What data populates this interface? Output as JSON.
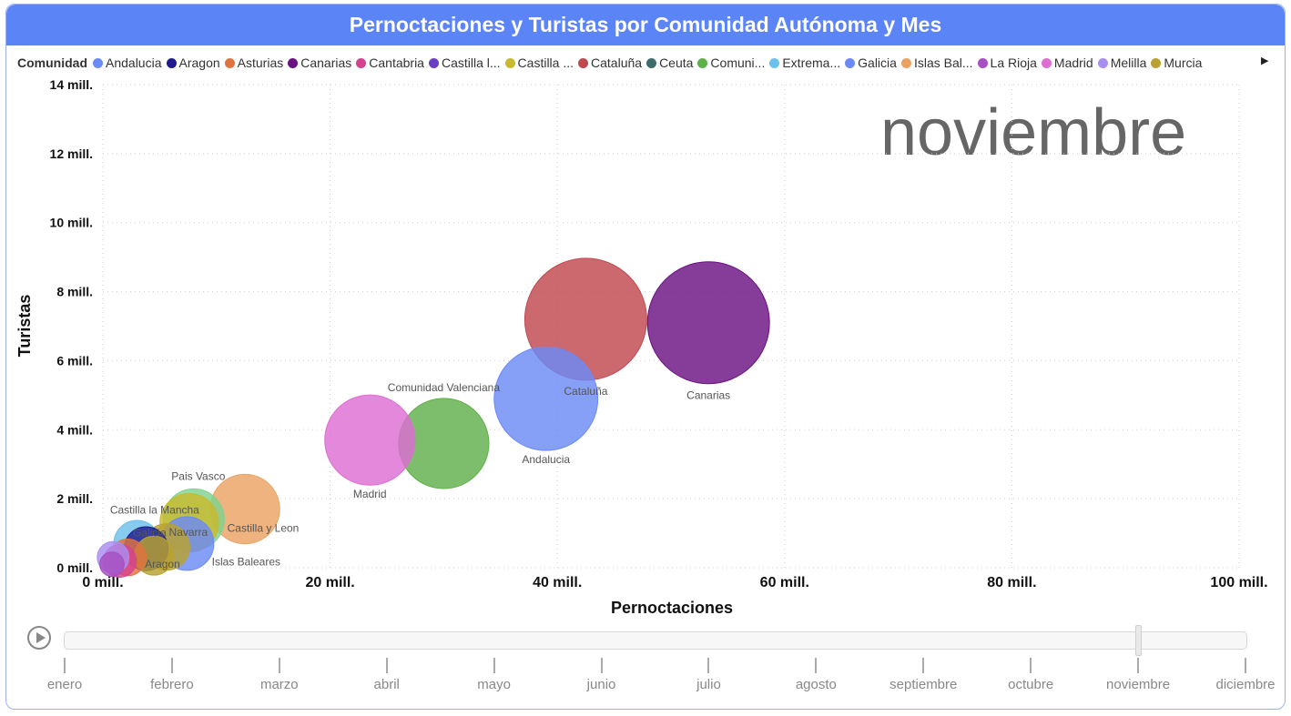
{
  "title": "Pernoctaciones y Turistas por Comunidad Autónoma y Mes",
  "legend": {
    "title": "Comunidad",
    "items": [
      {
        "label": "Andalucia",
        "color": "#6b8af5"
      },
      {
        "label": "Aragon",
        "color": "#1f1b8f"
      },
      {
        "label": "Asturias",
        "color": "#e0733f"
      },
      {
        "label": "Canarias",
        "color": "#6b1182"
      },
      {
        "label": "Cantabria",
        "color": "#d6428f"
      },
      {
        "label": "Castilla l...",
        "color": "#6a3fc4"
      },
      {
        "label": "Castilla ...",
        "color": "#c9b92e"
      },
      {
        "label": "Cataluña",
        "color": "#c0484f"
      },
      {
        "label": "Ceuta",
        "color": "#3e6b6b"
      },
      {
        "label": "Comuni...",
        "color": "#5fb04a"
      },
      {
        "label": "Extrema...",
        "color": "#6cc0ec"
      },
      {
        "label": "Galicia",
        "color": "#6b8af5"
      },
      {
        "label": "Islas Bal...",
        "color": "#eaa262"
      },
      {
        "label": "La Rioja",
        "color": "#a74fc2"
      },
      {
        "label": "Madrid",
        "color": "#dd6ed3"
      },
      {
        "label": "Melilla",
        "color": "#a98ef2"
      },
      {
        "label": "Murcia",
        "color": "#b9a230"
      }
    ]
  },
  "month_label": "noviembre",
  "timeline": {
    "months": [
      "enero",
      "febrero",
      "marzo",
      "abril",
      "mayo",
      "junio",
      "julio",
      "agosto",
      "septiembre",
      "octubre",
      "noviembre",
      "diciembre"
    ],
    "selected": "noviembre"
  },
  "chart_data": {
    "type": "scatter",
    "title": "Pernoctaciones y Turistas por Comunidad Autónoma y Mes",
    "xlabel": "Pernoctaciones",
    "ylabel": "Turistas",
    "xlim": [
      0,
      100
    ],
    "ylim": [
      0,
      14
    ],
    "x_unit": "mill.",
    "y_unit": "mill.",
    "xticks": [
      "0 mill.",
      "20 mill.",
      "40 mill.",
      "60 mill.",
      "80 mill.",
      "100 mill."
    ],
    "yticks": [
      "0 mill.",
      "2 mill.",
      "4 mill.",
      "6 mill.",
      "8 mill.",
      "10 mill.",
      "12 mill.",
      "14 mill."
    ],
    "grid": true,
    "legend_position": "top",
    "points": [
      {
        "name": "Canarias",
        "x": 53.3,
        "y": 7.1,
        "size": 1.0,
        "color": "#6b1182",
        "label": "Canarias"
      },
      {
        "name": "Cataluña",
        "x": 42.5,
        "y": 7.2,
        "size": 1.0,
        "color": "#c0484f",
        "label": "Cataluña"
      },
      {
        "name": "Andalucia",
        "x": 39.0,
        "y": 4.9,
        "size": 0.85,
        "color": "#6b8af5",
        "label": "Andalucia"
      },
      {
        "name": "Comunidad Valenciana",
        "x": 30.0,
        "y": 3.6,
        "size": 0.74,
        "color": "#5fb04a",
        "label": "Comunidad Valenciana"
      },
      {
        "name": "Madrid",
        "x": 23.5,
        "y": 3.7,
        "size": 0.74,
        "color": "#dd6ed3",
        "label": "Madrid"
      },
      {
        "name": "Castilla y Leon",
        "x": 12.5,
        "y": 1.7,
        "size": 0.57,
        "color": "#eaa262",
        "label": "Castilla y Leon"
      },
      {
        "name": "Pais Vasco",
        "x": 8.0,
        "y": 1.4,
        "size": 0.5,
        "color": "#7fd38f",
        "label": "Pais Vasco"
      },
      {
        "name": "Castilla la Mancha",
        "x": 7.6,
        "y": 1.3,
        "size": 0.48,
        "color": "#c9b92e",
        "label": "Castilla la Mancha"
      },
      {
        "name": "Islas Baleares",
        "x": 7.4,
        "y": 0.7,
        "size": 0.44,
        "color": "#6b8af5",
        "label": "Islas Baleares"
      },
      {
        "name": "Navarra",
        "x": 5.6,
        "y": 0.6,
        "size": 0.38,
        "color": "#b9a230",
        "label": "Navarra"
      },
      {
        "name": "Galicia",
        "x": 3.0,
        "y": 0.7,
        "size": 0.38,
        "color": "#6cc0ec",
        "label": "Galicia"
      },
      {
        "name": "Aragon",
        "x": 3.8,
        "y": 0.55,
        "size": 0.36,
        "color": "#1f1b8f",
        "label": "Aragon"
      },
      {
        "name": "Asturias",
        "x": 2.2,
        "y": 0.3,
        "size": 0.3,
        "color": "#e0733f",
        "label": ""
      },
      {
        "name": "Cantabria",
        "x": 1.5,
        "y": 0.2,
        "size": 0.27,
        "color": "#d6428f",
        "label": ""
      },
      {
        "name": "Murcia",
        "x": 4.5,
        "y": 0.35,
        "size": 0.32,
        "color": "#b9a230",
        "label": ""
      },
      {
        "name": "La Rioja",
        "x": 0.8,
        "y": 0.1,
        "size": 0.2,
        "color": "#a74fc2",
        "label": ""
      },
      {
        "name": "Melilla",
        "x": 0.9,
        "y": 0.3,
        "size": 0.26,
        "color": "#a98ef2",
        "label": ""
      }
    ]
  }
}
